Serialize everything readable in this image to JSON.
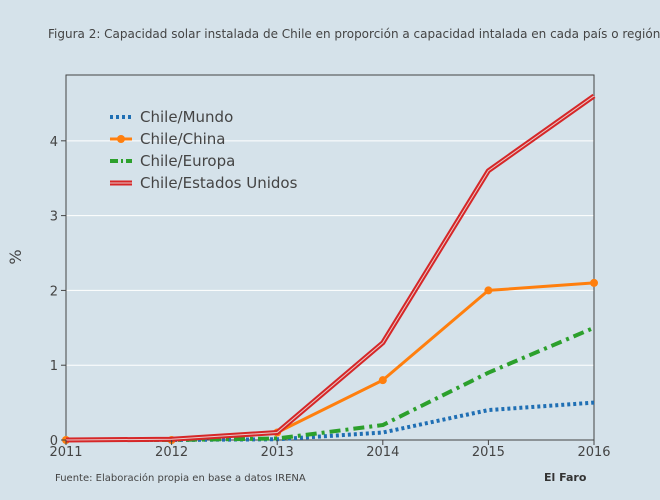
{
  "chart_data": {
    "type": "line",
    "title": "Figura 2: Capacidad solar instalada de Chile en proporción a capacidad intalada en cada país o región",
    "xlabel": "",
    "ylabel": "%",
    "x": [
      2011,
      2012,
      2013,
      2014,
      2015,
      2016
    ],
    "xlim": [
      2011,
      2016
    ],
    "ylim": [
      0,
      4.88
    ],
    "yticks": [
      0,
      1,
      2,
      3,
      4
    ],
    "grid": true,
    "legend_position": "top-left",
    "series": [
      {
        "name": "Chile/Mundo",
        "values": [
          0,
          0,
          0.01,
          0.1,
          0.4,
          0.5
        ],
        "color": "#1f6fb4",
        "style": "dotted",
        "markers": false
      },
      {
        "name": "Chile/China",
        "values": [
          0,
          0,
          0.1,
          0.8,
          2.0,
          2.1
        ],
        "color": "#ff7f0e",
        "style": "solid",
        "markers": true
      },
      {
        "name": "Chile/Europa",
        "values": [
          0,
          0,
          0.02,
          0.2,
          0.9,
          1.5
        ],
        "color": "#2ca02c",
        "style": "dashdot",
        "markers": false
      },
      {
        "name": "Chile/Estados Unidos",
        "values": [
          0,
          0.01,
          0.1,
          1.3,
          3.6,
          4.6
        ],
        "color": "#d62728",
        "style": "double",
        "markers": false
      }
    ]
  },
  "footer": {
    "source": "Fuente: Elaboración propia en base a datos IRENA",
    "brand": "El Faro"
  },
  "colors": {
    "background": "#d5e2ea",
    "grid": "#ffffff",
    "axis": "#444444"
  }
}
